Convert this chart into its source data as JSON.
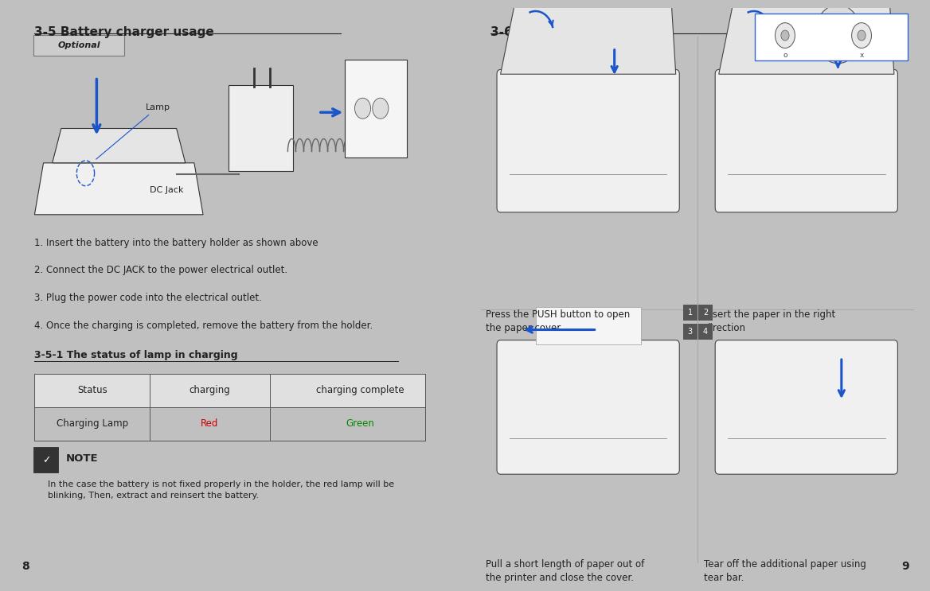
{
  "bg_outer": "#c0c0c0",
  "bg_page": "#ffffff",
  "page_number_left": "8",
  "page_number_right": "9",
  "left_title": "3-5 Battery charger usage",
  "left_optional_label": "Optional",
  "left_instructions": [
    "1. Insert the battery into the battery holder as shown above",
    "2. Connect the DC JACK to the power electrical outlet.",
    "3. Plug the power code into the electrical outlet.",
    "4. Once the charging is completed, remove the battery from the holder."
  ],
  "table_title": "3-5-1 The status of lamp in charging",
  "table_headers": [
    "Status",
    "charging",
    "charging complete"
  ],
  "table_row": [
    "Charging Lamp",
    "Red",
    "Green"
  ],
  "table_red_color": "#cc0000",
  "table_green_color": "#008800",
  "note_title": "NOTE",
  "note_text": "In the case the battery is not fixed properly in the holder, the red lamp will be\nblinking, Then, extract and reinsert the battery.",
  "right_title": "3-6 Roll paper installation",
  "right_captions": [
    "Press the PUSH button to open\nthe paper cover",
    "Insert the paper in the right\ndirection",
    "Pull a short length of paper out of\nthe printer and close the cover.",
    "Tear off the additional paper using\ntear bar."
  ],
  "quadrant_labels": [
    "1",
    "2",
    "3",
    "4"
  ],
  "text_color": "#222222"
}
